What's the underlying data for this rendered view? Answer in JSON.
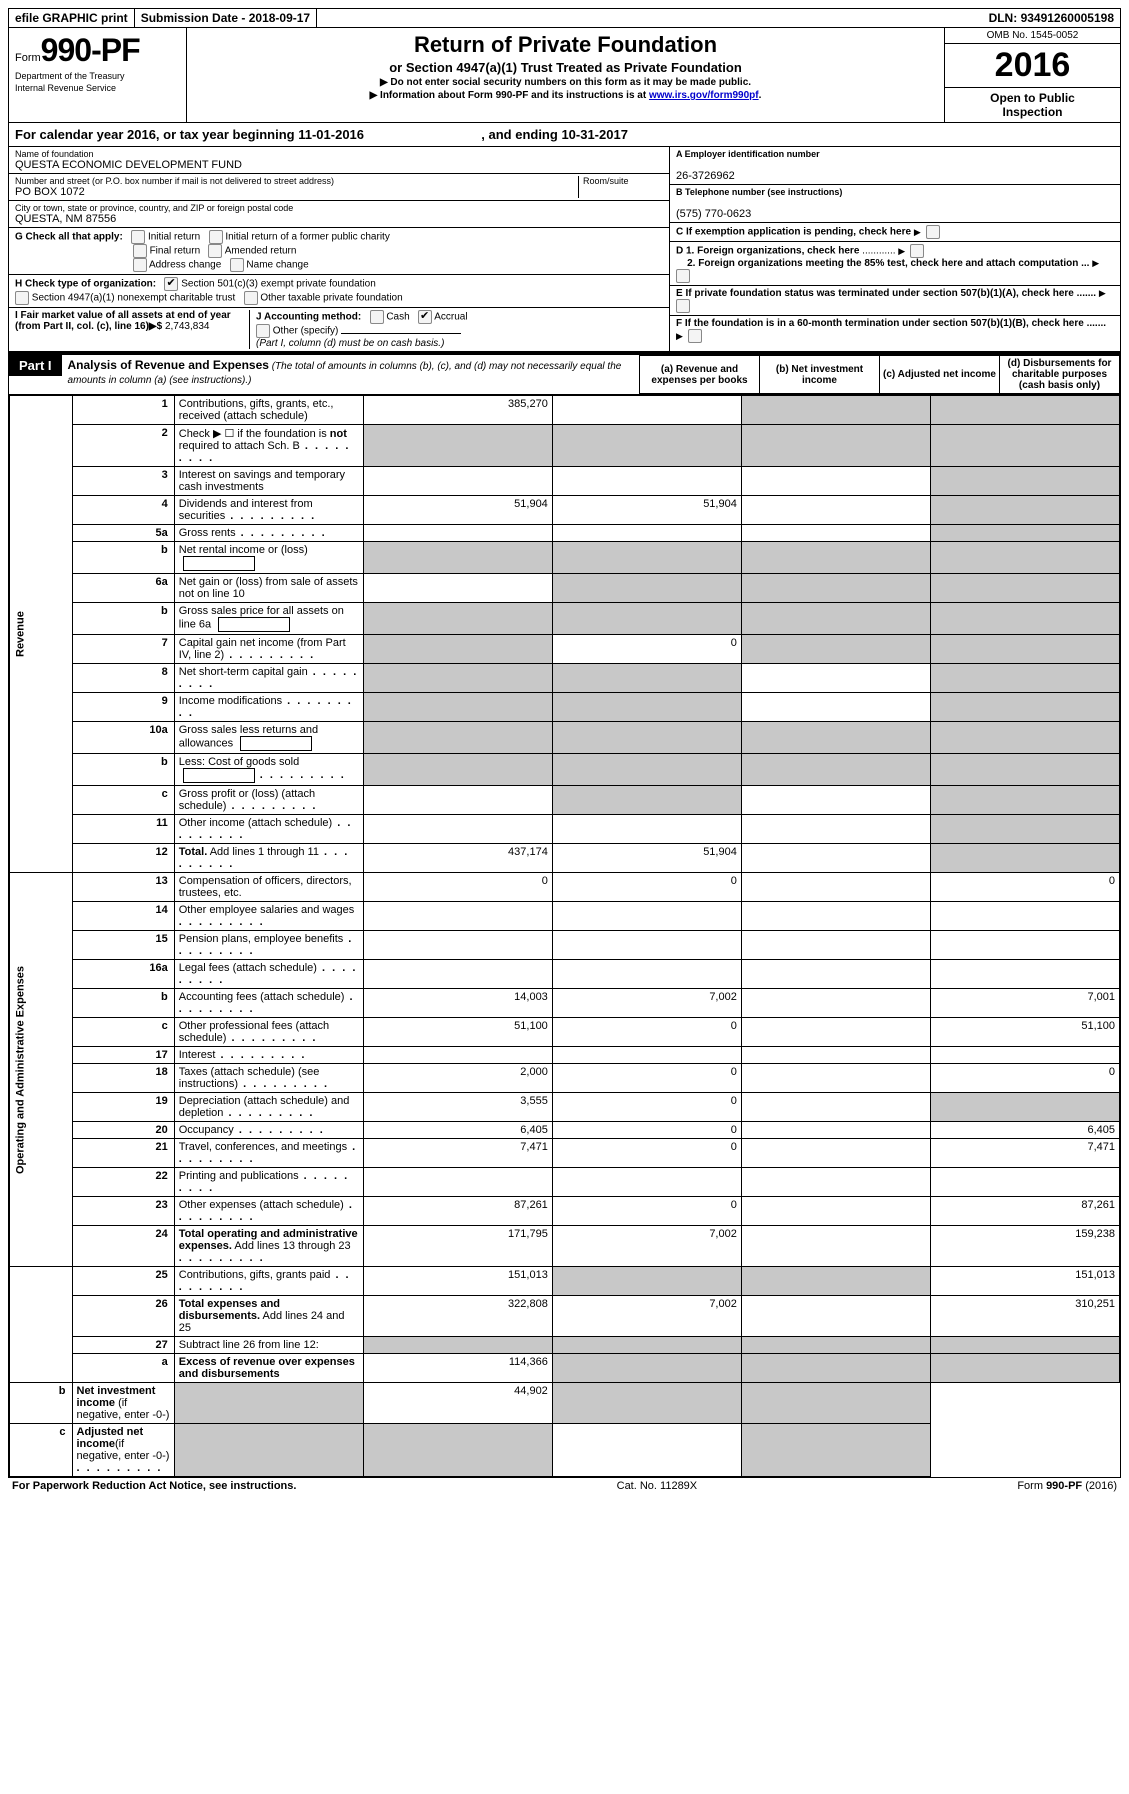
{
  "top_bar": {
    "efile": "efile GRAPHIC print",
    "sub_date_label": "Submission Date - ",
    "sub_date": "2018-09-17",
    "dln_label": "DLN: ",
    "dln": "93491260005198"
  },
  "header": {
    "form_word": "Form",
    "form_no": "990-PF",
    "dept1": "Department of the Treasury",
    "dept2": "Internal Revenue Service",
    "title": "Return of Private Foundation",
    "subtitle": "or Section 4947(a)(1) Trust Treated as Private Foundation",
    "note1": "▶ Do not enter social security numbers on this form as it may be made public.",
    "note2_pre": "▶ Information about Form 990-PF and its instructions is at ",
    "note2_link": "www.irs.gov/form990pf",
    "note2_post": ".",
    "omb": "OMB No. 1545-0052",
    "year": "2016",
    "open1": "Open to Public",
    "open2": "Inspection"
  },
  "cal_year": {
    "pre": "For calendar year 2016, or tax year beginning ",
    "begin": "11-01-2016",
    "mid": " , and ending ",
    "end": "10-31-2017"
  },
  "id_block": {
    "name_lbl": "Name of foundation",
    "name": "QUESTA ECONOMIC DEVELOPMENT FUND",
    "addr_lbl": "Number and street (or P.O. box number if mail is not delivered to street address)",
    "room_lbl": "Room/suite",
    "addr": "PO BOX 1072",
    "city_lbl": "City or town, state or province, country, and ZIP or foreign postal code",
    "city": "QUESTA, NM  87556",
    "a_lbl": "A Employer identification number",
    "a_val": "26-3726962",
    "b_lbl": "B Telephone number (see instructions)",
    "b_val": "(575) 770-0623",
    "c_lbl": "C If exemption application is pending, check here",
    "d1_lbl": "D 1. Foreign organizations, check here",
    "d2_lbl": "2. Foreign organizations meeting the 85% test, check here and attach computation ...",
    "e_lbl": "E  If private foundation status was terminated under section 507(b)(1)(A), check here .......",
    "f_lbl": "F  If the foundation is in a 60-month termination under section 507(b)(1)(B), check here .......",
    "g_lbl": "G Check all that apply:",
    "g_opts": [
      "Initial return",
      "Initial return of a former public charity",
      "Final return",
      "Amended return",
      "Address change",
      "Name change"
    ],
    "h_lbl": "H Check type of organization:",
    "h_opt1": "Section 501(c)(3) exempt private foundation",
    "h_opt2": "Section 4947(a)(1) nonexempt charitable trust",
    "h_opt3": "Other taxable private foundation",
    "i_lbl": "I Fair market value of all assets at end of year (from Part II, col. (c), line 16)▶$",
    "i_val": "  2,743,834",
    "j_lbl": "J Accounting method:",
    "j_cash": "Cash",
    "j_accrual": "Accrual",
    "j_other": "Other (specify)",
    "j_note": "(Part I, column (d) must be on cash basis.)"
  },
  "part1": {
    "label": "Part I",
    "title": "Analysis of Revenue and Expenses",
    "note": " (The total of amounts in columns (b), (c), and (d) may not necessarily equal the amounts in column (a) (see instructions).)",
    "cols": {
      "a": "(a)   Revenue and expenses per books",
      "b": "(b)  Net investment income",
      "c": "(c)  Adjusted net income",
      "d": "(d)  Disbursements for charitable purposes (cash basis only)"
    }
  },
  "side_labels": {
    "rev": "Revenue",
    "oae": "Operating and Administrative Expenses"
  },
  "rows": [
    {
      "n": "1",
      "d": "Contributions, gifts, grants, etc., received (attach schedule)",
      "a": "385,270",
      "b": "",
      "c": "grey",
      "dcol": "grey"
    },
    {
      "n": "2",
      "d": "Check ▶ ☐  if the foundation is <b>not</b> required to attach Sch. B",
      "dots": true,
      "a": "grey",
      "b": "grey",
      "c": "grey",
      "dcol": "grey"
    },
    {
      "n": "3",
      "d": "Interest on savings and temporary cash investments",
      "a": "",
      "b": "",
      "c": "",
      "dcol": "grey"
    },
    {
      "n": "4",
      "d": "Dividends and interest from securities",
      "dots": true,
      "a": "51,904",
      "b": "51,904",
      "c": "",
      "dcol": "grey"
    },
    {
      "n": "5a",
      "d": "Gross rents",
      "dots": true,
      "a": "",
      "b": "",
      "c": "",
      "dcol": "grey"
    },
    {
      "n": "b",
      "d": "Net rental income or (loss)  ",
      "box": true,
      "a": "grey",
      "b": "grey",
      "c": "grey",
      "dcol": "grey"
    },
    {
      "n": "6a",
      "d": "Net gain or (loss) from sale of assets not on line 10",
      "a": "",
      "b": "grey",
      "c": "grey",
      "dcol": "grey"
    },
    {
      "n": "b",
      "d": "Gross sales price for all assets on line 6a ",
      "box": true,
      "a": "grey",
      "b": "grey",
      "c": "grey",
      "dcol": "grey"
    },
    {
      "n": "7",
      "d": "Capital gain net income (from Part IV, line 2)",
      "dots": true,
      "a": "grey",
      "b": "0",
      "c": "grey",
      "dcol": "grey"
    },
    {
      "n": "8",
      "d": "Net short-term capital gain",
      "dots": true,
      "a": "grey",
      "b": "grey",
      "c": "",
      "dcol": "grey"
    },
    {
      "n": "9",
      "d": "Income modifications",
      "dots": true,
      "a": "grey",
      "b": "grey",
      "c": "",
      "dcol": "grey"
    },
    {
      "n": "10a",
      "d": "Gross sales less returns and allowances ",
      "box": true,
      "a": "grey",
      "b": "grey",
      "c": "grey",
      "dcol": "grey"
    },
    {
      "n": "b",
      "d": "Less: Cost of goods sold",
      "dots": true,
      "box": true,
      "a": "grey",
      "b": "grey",
      "c": "grey",
      "dcol": "grey"
    },
    {
      "n": "c",
      "d": "Gross profit or (loss) (attach schedule)",
      "dots": true,
      "a": "",
      "b": "grey",
      "c": "",
      "dcol": "grey"
    },
    {
      "n": "11",
      "d": "Other income (attach schedule)",
      "dots": true,
      "a": "",
      "b": "",
      "c": "",
      "dcol": "grey"
    },
    {
      "n": "12",
      "d": "<b>Total.</b> Add lines 1 through 11",
      "dots": true,
      "a": "437,174",
      "b": "51,904",
      "c": "",
      "dcol": "grey"
    },
    {
      "n": "13",
      "d": "Compensation of officers, directors, trustees, etc.",
      "a": "0",
      "b": "0",
      "c": "",
      "dcol": "0"
    },
    {
      "n": "14",
      "d": "Other employee salaries and wages",
      "dots": true,
      "a": "",
      "b": "",
      "c": "",
      "dcol": ""
    },
    {
      "n": "15",
      "d": "Pension plans, employee benefits",
      "dots": true,
      "a": "",
      "b": "",
      "c": "",
      "dcol": ""
    },
    {
      "n": "16a",
      "d": "Legal fees (attach schedule)",
      "dots": true,
      "a": "",
      "b": "",
      "c": "",
      "dcol": ""
    },
    {
      "n": "b",
      "d": "Accounting fees (attach schedule)",
      "dots": true,
      "a": "14,003",
      "b": "7,002",
      "c": "",
      "dcol": "7,001"
    },
    {
      "n": "c",
      "d": "Other professional fees (attach schedule)",
      "dots": true,
      "a": "51,100",
      "b": "0",
      "c": "",
      "dcol": "51,100"
    },
    {
      "n": "17",
      "d": "Interest",
      "dots": true,
      "a": "",
      "b": "",
      "c": "",
      "dcol": ""
    },
    {
      "n": "18",
      "d": "Taxes (attach schedule) (see instructions)",
      "dots": true,
      "a": "2,000",
      "b": "0",
      "c": "",
      "dcol": "0"
    },
    {
      "n": "19",
      "d": "Depreciation (attach schedule) and depletion",
      "dots": true,
      "a": "3,555",
      "b": "0",
      "c": "",
      "dcol": "grey"
    },
    {
      "n": "20",
      "d": "Occupancy",
      "dots": true,
      "a": "6,405",
      "b": "0",
      "c": "",
      "dcol": "6,405"
    },
    {
      "n": "21",
      "d": "Travel, conferences, and meetings",
      "dots": true,
      "a": "7,471",
      "b": "0",
      "c": "",
      "dcol": "7,471"
    },
    {
      "n": "22",
      "d": "Printing and publications",
      "dots": true,
      "a": "",
      "b": "",
      "c": "",
      "dcol": ""
    },
    {
      "n": "23",
      "d": "Other expenses (attach schedule)",
      "dots": true,
      "a": "87,261",
      "b": "0",
      "c": "",
      "dcol": "87,261"
    },
    {
      "n": "24",
      "d": "<b>Total operating and administrative expenses.</b> Add lines 13 through 23",
      "dots": true,
      "a": "171,795",
      "b": "7,002",
      "c": "",
      "dcol": "159,238"
    },
    {
      "n": "25",
      "d": "Contributions, gifts, grants paid",
      "dots": true,
      "a": "151,013",
      "b": "grey",
      "c": "grey",
      "dcol": "151,013"
    },
    {
      "n": "26",
      "d": "<b>Total expenses and disbursements.</b> Add lines 24 and 25",
      "a": "322,808",
      "b": "7,002",
      "c": "",
      "dcol": "310,251"
    },
    {
      "n": "27",
      "d": "Subtract line 26 from line 12:",
      "a": "grey",
      "b": "grey",
      "c": "grey",
      "dcol": "grey"
    },
    {
      "n": "a",
      "d": "<b>Excess of revenue over expenses and disbursements</b>",
      "a": "114,366",
      "b": "grey",
      "c": "grey",
      "dcol": "grey"
    },
    {
      "n": "b",
      "d": "<b>Net investment income</b> (if negative, enter -0-)",
      "a": "grey",
      "b": "44,902",
      "c": "grey",
      "dcol": "grey"
    },
    {
      "n": "c",
      "d": "<b>Adjusted net income</b>(if negative, enter -0-)",
      "dots": true,
      "a": "grey",
      "b": "grey",
      "c": "",
      "dcol": "grey"
    }
  ],
  "footer": {
    "left": "For Paperwork Reduction Act Notice, see instructions.",
    "mid": "Cat. No. 11289X",
    "right": "Form 990-PF (2016)"
  }
}
